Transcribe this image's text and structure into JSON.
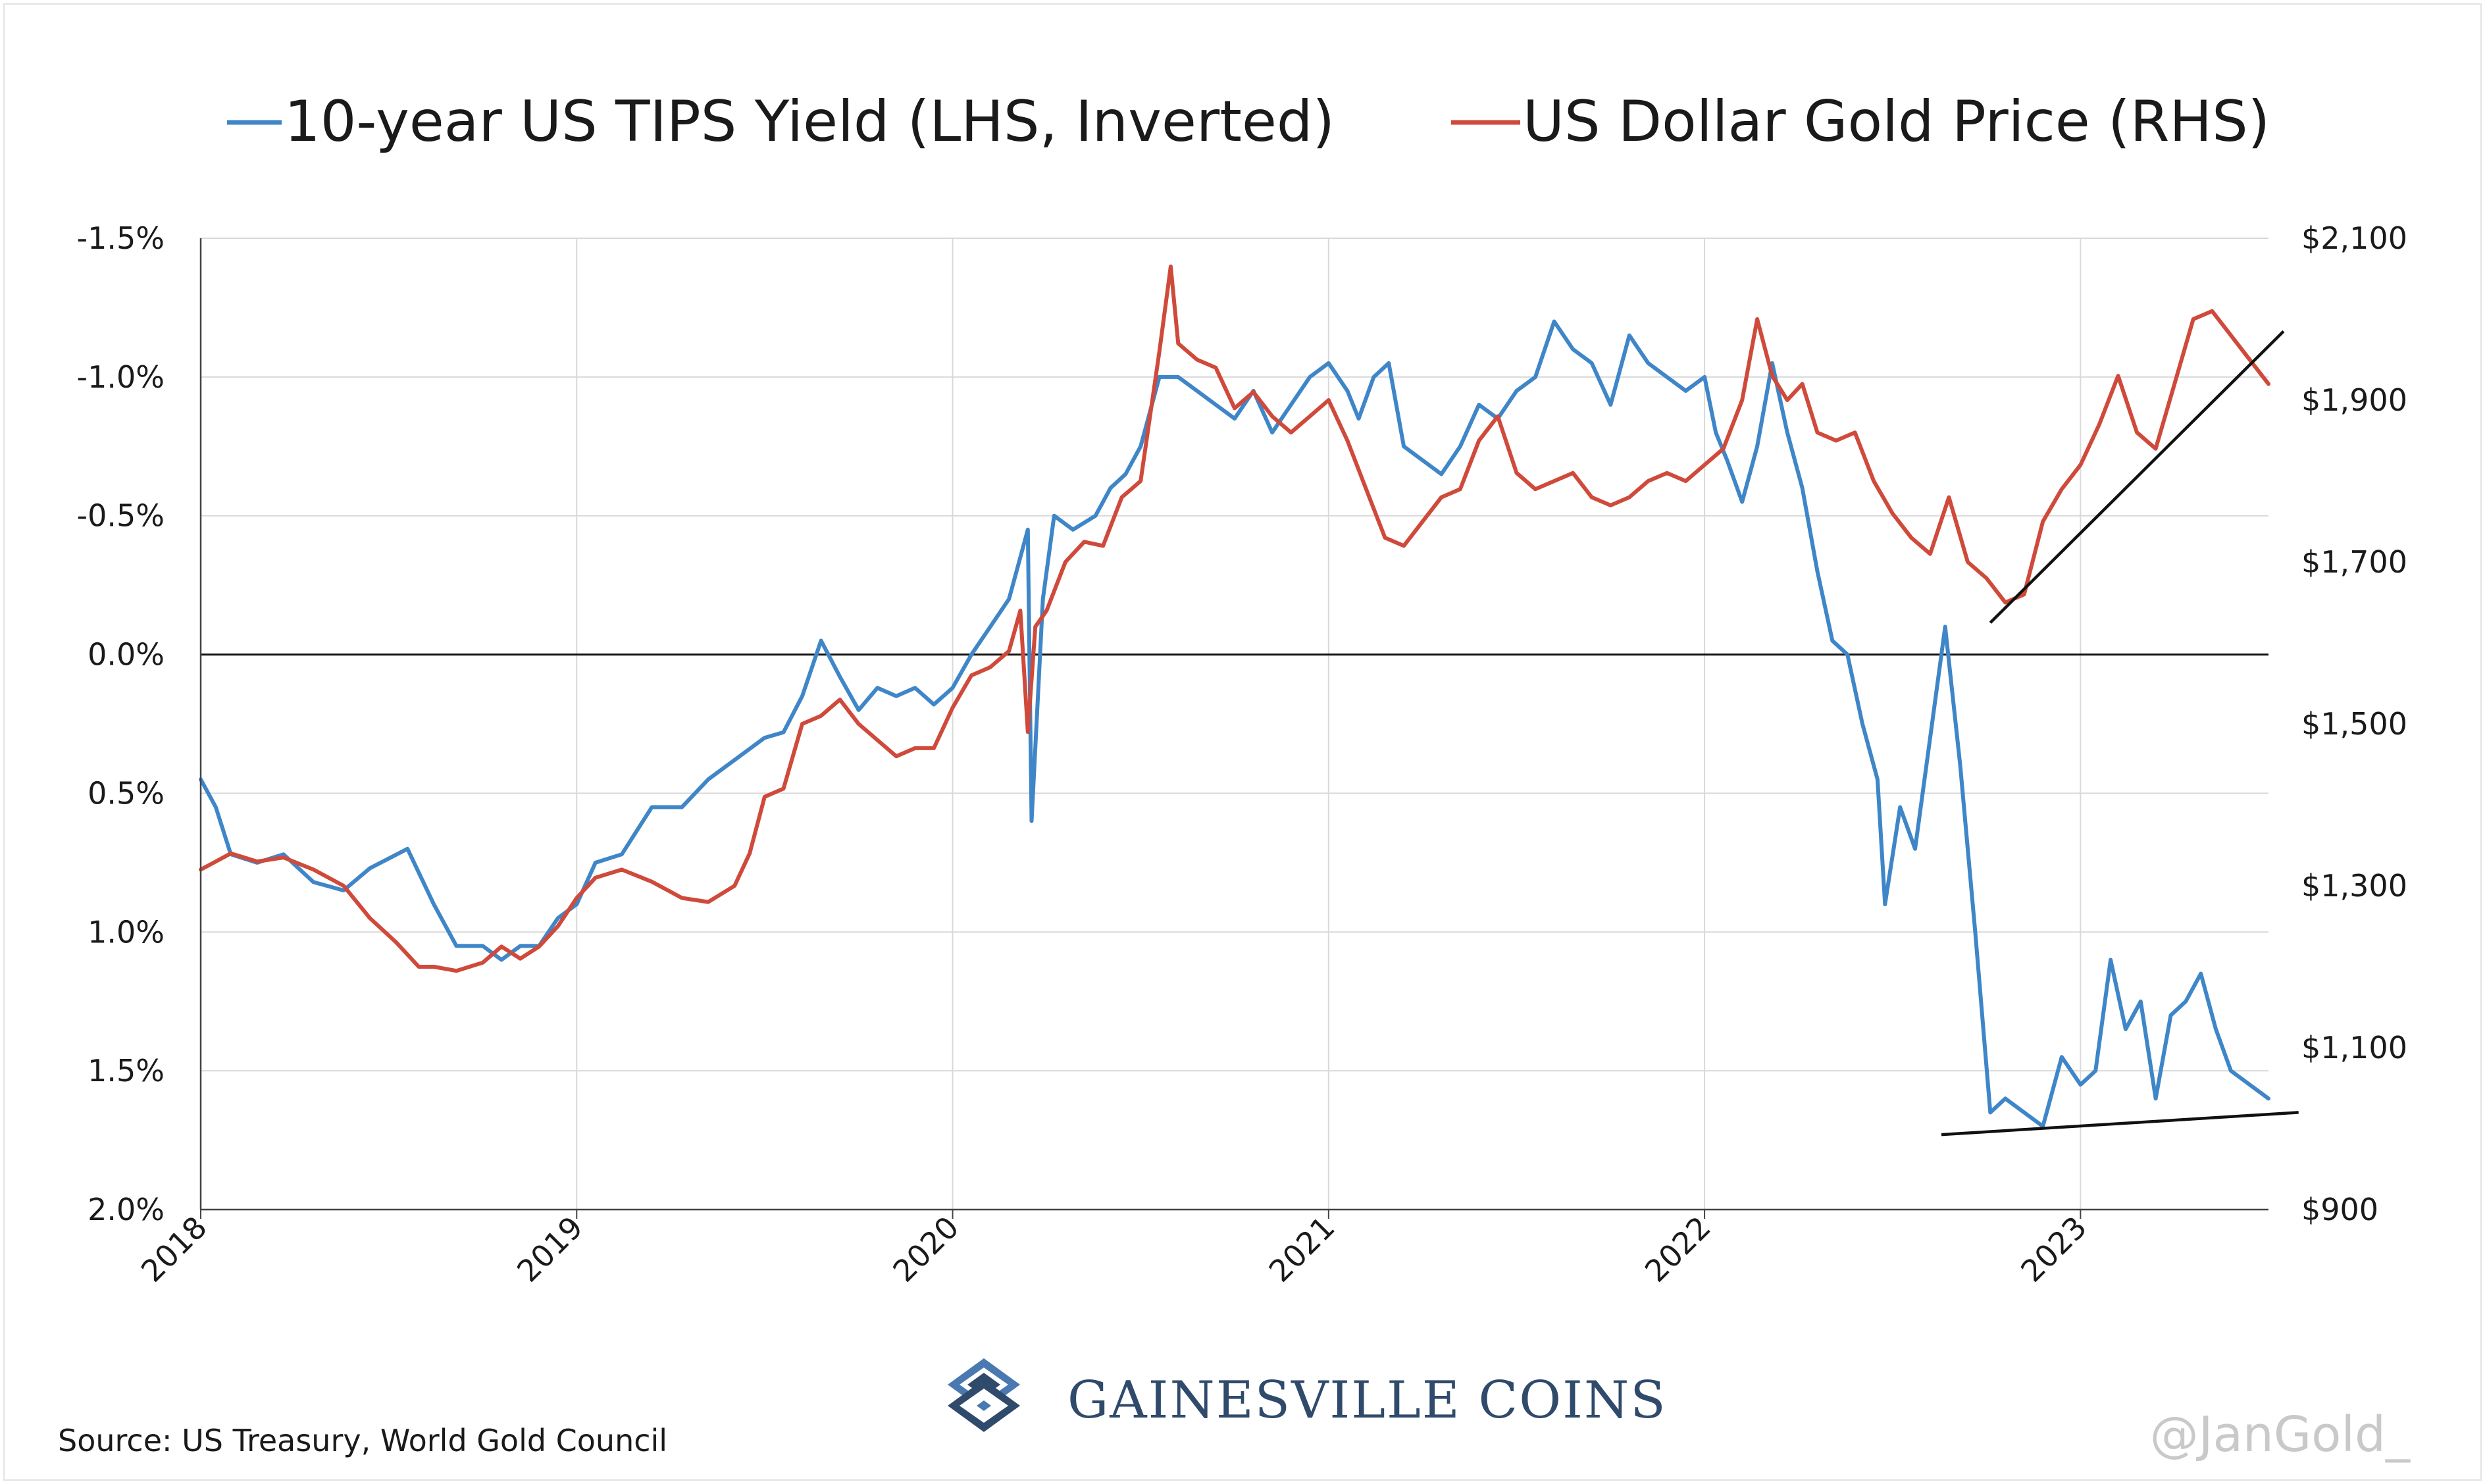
{
  "chart_data": {
    "type": "line",
    "x_ticks": [
      "2018",
      "2019",
      "2020",
      "2021",
      "2022",
      "2023"
    ],
    "left_axis": {
      "ticks": [
        "-1.5%",
        "-1.0%",
        "-0.5%",
        "0.0%",
        "0.5%",
        "1.0%",
        "1.5%",
        "2.0%"
      ],
      "values": [
        -1.5,
        -1.0,
        -0.5,
        0.0,
        0.5,
        1.0,
        1.5,
        2.0
      ],
      "ylim": [
        -1.5,
        2.0
      ],
      "inverted": true
    },
    "right_axis": {
      "ticks": [
        "$2,100",
        "$1,900",
        "$1,700",
        "$1,500",
        "$1,300",
        "$1,100",
        "$900"
      ],
      "values": [
        2100,
        1900,
        1700,
        1500,
        1300,
        1100,
        900
      ],
      "ylim": [
        900,
        2100
      ]
    },
    "xlim": [
      2018.0,
      2023.5
    ],
    "grid": true,
    "legend_position": "top",
    "series": [
      {
        "name": "10-year US TIPS Yield (LHS, Inverted)",
        "color": "#3f86c8",
        "axis": "left",
        "x": [
          2018.0,
          2018.04,
          2018.08,
          2018.15,
          2018.22,
          2018.3,
          2018.38,
          2018.45,
          2018.55,
          2018.62,
          2018.68,
          2018.75,
          2018.8,
          2018.85,
          2018.9,
          2018.95,
          2019.0,
          2019.05,
          2019.12,
          2019.2,
          2019.28,
          2019.35,
          2019.42,
          2019.5,
          2019.55,
          2019.6,
          2019.65,
          2019.7,
          2019.75,
          2019.8,
          2019.85,
          2019.9,
          2019.95,
          2020.0,
          2020.05,
          2020.1,
          2020.15,
          2020.2,
          2020.21,
          2020.24,
          2020.27,
          2020.32,
          2020.38,
          2020.42,
          2020.46,
          2020.5,
          2020.55,
          2020.6,
          2020.65,
          2020.7,
          2020.75,
          2020.8,
          2020.85,
          2020.9,
          2020.95,
          2021.0,
          2021.05,
          2021.08,
          2021.12,
          2021.16,
          2021.2,
          2021.25,
          2021.3,
          2021.35,
          2021.4,
          2021.45,
          2021.5,
          2021.55,
          2021.6,
          2021.65,
          2021.7,
          2021.75,
          2021.8,
          2021.85,
          2021.9,
          2021.95,
          2022.0,
          2022.03,
          2022.06,
          2022.1,
          2022.14,
          2022.18,
          2022.22,
          2022.26,
          2022.3,
          2022.34,
          2022.38,
          2022.42,
          2022.46,
          2022.48,
          2022.52,
          2022.56,
          2022.6,
          2022.64,
          2022.68,
          2022.72,
          2022.76,
          2022.8,
          2022.85,
          2022.9,
          2022.95,
          2023.0,
          2023.04,
          2023.08,
          2023.12,
          2023.16,
          2023.2,
          2023.24,
          2023.28,
          2023.32,
          2023.36,
          2023.4,
          2023.45,
          2023.5
        ],
        "y": [
          0.45,
          0.55,
          0.72,
          0.75,
          0.72,
          0.82,
          0.85,
          0.77,
          0.7,
          0.9,
          1.05,
          1.05,
          1.1,
          1.05,
          1.05,
          0.95,
          0.9,
          0.75,
          0.72,
          0.55,
          0.55,
          0.45,
          0.38,
          0.3,
          0.28,
          0.15,
          -0.05,
          0.08,
          0.2,
          0.12,
          0.15,
          0.12,
          0.18,
          0.12,
          0.0,
          -0.1,
          -0.2,
          -0.45,
          0.6,
          -0.2,
          -0.5,
          -0.45,
          -0.5,
          -0.6,
          -0.65,
          -0.75,
          -1.0,
          -1.0,
          -0.95,
          -0.9,
          -0.85,
          -0.95,
          -0.8,
          -0.9,
          -1.0,
          -1.05,
          -0.95,
          -0.85,
          -1.0,
          -1.05,
          -0.75,
          -0.7,
          -0.65,
          -0.75,
          -0.9,
          -0.85,
          -0.95,
          -1.0,
          -1.2,
          -1.1,
          -1.05,
          -0.9,
          -1.15,
          -1.05,
          -1.0,
          -0.95,
          -1.0,
          -0.8,
          -0.7,
          -0.55,
          -0.75,
          -1.05,
          -0.8,
          -0.6,
          -0.3,
          -0.05,
          0.0,
          0.25,
          0.45,
          0.9,
          0.55,
          0.7,
          0.3,
          -0.1,
          0.4,
          1.0,
          1.65,
          1.6,
          1.65,
          1.7,
          1.45,
          1.55,
          1.5,
          1.1,
          1.35,
          1.25,
          1.6,
          1.3,
          1.25,
          1.15,
          1.35,
          1.5,
          1.55,
          1.6
        ]
      },
      {
        "name": "US Dollar Gold Price (RHS)",
        "color": "#cf4a3b",
        "axis": "right",
        "x": [
          2018.0,
          2018.04,
          2018.08,
          2018.15,
          2018.22,
          2018.3,
          2018.38,
          2018.45,
          2018.52,
          2018.58,
          2018.62,
          2018.68,
          2018.75,
          2018.8,
          2018.85,
          2018.9,
          2018.95,
          2019.0,
          2019.05,
          2019.12,
          2019.2,
          2019.28,
          2019.35,
          2019.42,
          2019.46,
          2019.5,
          2019.55,
          2019.6,
          2019.65,
          2019.7,
          2019.75,
          2019.8,
          2019.85,
          2019.9,
          2019.95,
          2020.0,
          2020.05,
          2020.1,
          2020.15,
          2020.18,
          2020.2,
          2020.22,
          2020.25,
          2020.3,
          2020.35,
          2020.4,
          2020.45,
          2020.5,
          2020.55,
          2020.58,
          2020.6,
          2020.65,
          2020.7,
          2020.75,
          2020.8,
          2020.85,
          2020.9,
          2020.95,
          2021.0,
          2021.05,
          2021.1,
          2021.15,
          2021.2,
          2021.25,
          2021.3,
          2021.35,
          2021.4,
          2021.45,
          2021.5,
          2021.55,
          2021.6,
          2021.65,
          2021.7,
          2021.75,
          2021.8,
          2021.85,
          2021.9,
          2021.95,
          2022.0,
          2022.05,
          2022.1,
          2022.14,
          2022.18,
          2022.22,
          2022.26,
          2022.3,
          2022.35,
          2022.4,
          2022.45,
          2022.5,
          2022.55,
          2022.6,
          2022.65,
          2022.7,
          2022.75,
          2022.8,
          2022.85,
          2022.9,
          2022.95,
          2023.0,
          2023.05,
          2023.1,
          2023.15,
          2023.2,
          2023.25,
          2023.3,
          2023.35,
          2023.4,
          2023.45,
          2023.5
        ],
        "y": [
          1320,
          1330,
          1340,
          1330,
          1335,
          1320,
          1300,
          1260,
          1230,
          1200,
          1200,
          1195,
          1205,
          1225,
          1210,
          1225,
          1250,
          1285,
          1310,
          1320,
          1305,
          1285,
          1280,
          1300,
          1340,
          1410,
          1420,
          1500,
          1510,
          1530,
          1500,
          1480,
          1460,
          1470,
          1470,
          1520,
          1560,
          1570,
          1590,
          1640,
          1490,
          1620,
          1640,
          1700,
          1725,
          1720,
          1780,
          1800,
          1960,
          2065,
          1970,
          1950,
          1940,
          1890,
          1910,
          1880,
          1860,
          1880,
          1900,
          1850,
          1790,
          1730,
          1720,
          1750,
          1780,
          1790,
          1850,
          1880,
          1810,
          1790,
          1800,
          1810,
          1780,
          1770,
          1780,
          1800,
          1810,
          1800,
          1820,
          1840,
          1900,
          2000,
          1930,
          1900,
          1920,
          1860,
          1850,
          1860,
          1800,
          1760,
          1730,
          1710,
          1780,
          1700,
          1680,
          1650,
          1660,
          1750,
          1790,
          1820,
          1870,
          1930,
          1860,
          1840,
          1920,
          2000,
          2010,
          1980,
          1950,
          1920
        ]
      }
    ]
  },
  "legend": {
    "series1": "10-year US TIPS Yield (LHS, Inverted)",
    "series2": "US Dollar Gold Price (RHS)"
  },
  "footer": {
    "source": "Source: US Treasury, World Gold Council",
    "brand": "GAINESVILLE COINS",
    "handle": "@JanGold_"
  },
  "colors": {
    "tips": "#3f86c8",
    "gold": "#cf4a3b",
    "grid": "#d9d9d9",
    "brand": "#2f4a6b"
  }
}
